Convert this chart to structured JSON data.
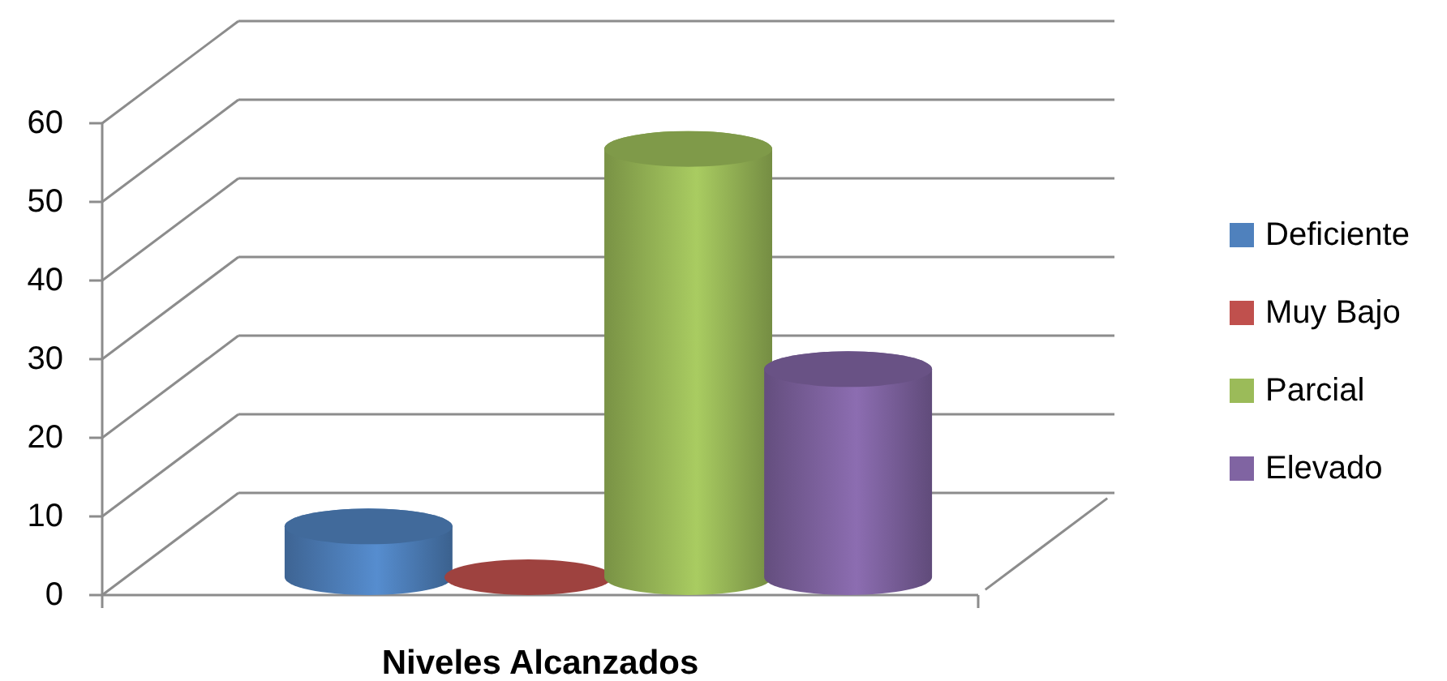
{
  "chart_data": {
    "type": "bar",
    "xlabel": "Niveles Alcanzados",
    "categories": [
      null
    ],
    "series": [
      {
        "name": "Deficiente",
        "color": "#4f81bd",
        "values": [
          11
        ]
      },
      {
        "name": "Muy Bajo",
        "color": "#c0504d",
        "values": [
          0
        ]
      },
      {
        "name": "Parcial",
        "color": "#9bbb59",
        "values": [
          59
        ]
      },
      {
        "name": "Elevado",
        "color": "#8064a2",
        "values": [
          31
        ]
      }
    ],
    "ylim": [
      0,
      60
    ],
    "yticks": [
      0,
      10,
      20,
      30,
      40,
      50,
      60
    ],
    "grid": "y",
    "legend": "right"
  }
}
